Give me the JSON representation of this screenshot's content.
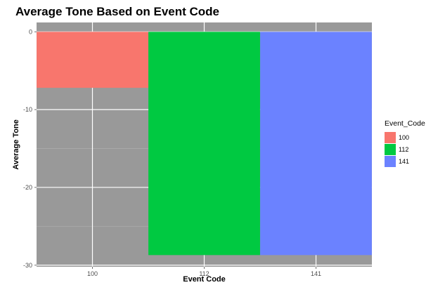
{
  "chart_data": {
    "type": "bar",
    "title": "Average Tone Based on Event Code",
    "xlabel": "Event Code",
    "ylabel": "Average Tone",
    "categories": [
      "100",
      "112",
      "141"
    ],
    "values": [
      -7.2,
      -28.7,
      -28.7
    ],
    "colors": [
      "#F8766D",
      "#00C941",
      "#6B82FF"
    ],
    "ylim": [
      -30.2,
      1.2
    ],
    "yticks": [
      0,
      -10,
      -20,
      -30
    ],
    "yticks_labels": [
      "0",
      "-10",
      "-20",
      "-30"
    ],
    "grid": true,
    "panel_background": "#999999",
    "legend": {
      "title": "Event_Code",
      "position": "right",
      "items": [
        "100",
        "112",
        "141"
      ]
    }
  }
}
